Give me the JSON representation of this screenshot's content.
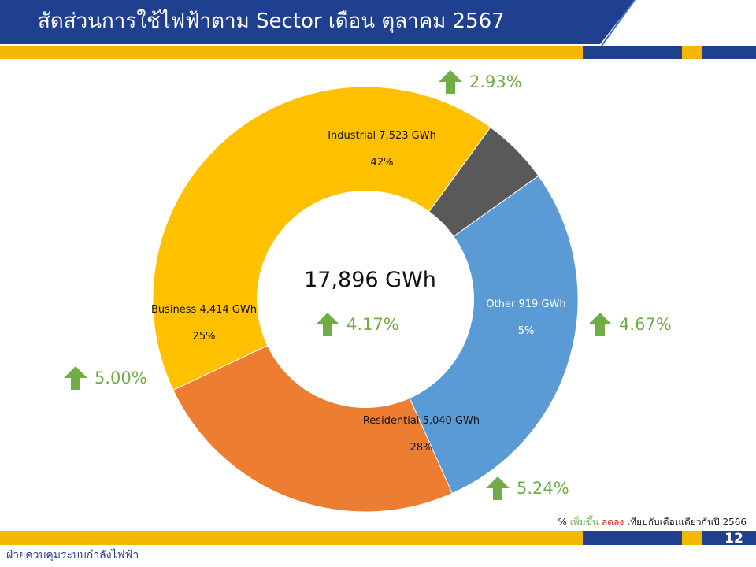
{
  "header": {
    "title": "สัดส่วนการใช้ไฟฟ้าตาม Sector เดือน ตุลาคม 2567"
  },
  "colors": {
    "navy": "#1f3f8f",
    "gold": "#f5b800",
    "green": "#70ad47",
    "red": "#e02020"
  },
  "chart_data": {
    "type": "pie",
    "subtype": "donut",
    "center": {
      "total": "17,896 GWh",
      "change": "4.17%"
    },
    "slices": [
      {
        "name": "Industrial",
        "value": 7523,
        "unit": "GWh",
        "label": "Industrial 7,523 GWh",
        "percent": "42%",
        "change": "2.93%",
        "direction": "up",
        "color": "#ffc000"
      },
      {
        "name": "Other",
        "value": 919,
        "unit": "GWh",
        "label": "Other 919 GWh",
        "percent": "5%",
        "change": "4.67%",
        "direction": "up",
        "color": "#595959"
      },
      {
        "name": "Residential",
        "value": 5040,
        "unit": "GWh",
        "label": "Residential 5,040 GWh",
        "percent": "28%",
        "change": "5.24%",
        "direction": "up",
        "color": "#5b9bd5"
      },
      {
        "name": "Business",
        "value": 4414,
        "unit": "GWh",
        "label": "Business 4,414 GWh",
        "percent": "25%",
        "change": "5.00%",
        "direction": "up",
        "color": "#ed7d31"
      }
    ]
  },
  "footer": {
    "note_prefix": "%",
    "note_up": "เพิ่มขึ้น",
    "note_down": "ลดลง",
    "note_suffix": "เทียบกับเดือนเดียวกันปี 2566",
    "page_number": "12",
    "department": "ฝ่ายควบคุมระบบกำลังไฟฟ้า"
  }
}
